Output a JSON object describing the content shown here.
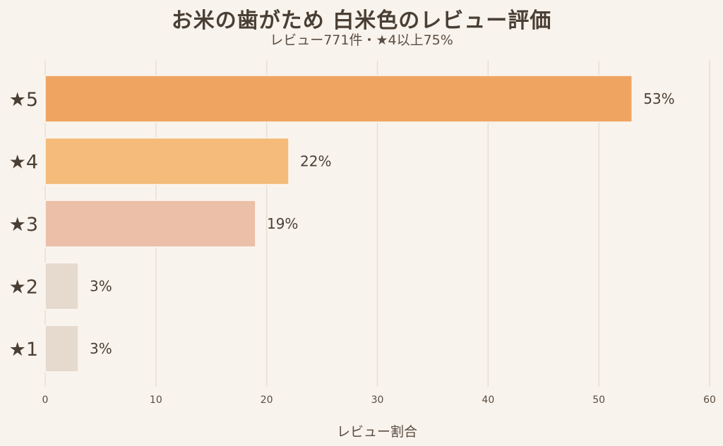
{
  "chart_data": {
    "type": "bar",
    "orientation": "horizontal",
    "title": "お米の歯がため 白米色のレビュー評価",
    "subtitle": "レビュー771件・★4以上75%",
    "xlabel": "レビュー割合",
    "ylabel": "",
    "categories": [
      "★5",
      "★4",
      "★3",
      "★2",
      "★1"
    ],
    "values": [
      53,
      22,
      19,
      3,
      3
    ],
    "data_labels": [
      "53%",
      "22%",
      "19%",
      "3%",
      "3%"
    ],
    "colors": [
      "#f0a462",
      "#f4bb7a",
      "#ebbfa8",
      "#e6d9ce",
      "#e6d9ce"
    ],
    "xlim": [
      0,
      60
    ],
    "xticks": [
      0,
      10,
      20,
      30,
      40,
      50,
      60
    ],
    "grid": "vertical",
    "legend": "none"
  }
}
